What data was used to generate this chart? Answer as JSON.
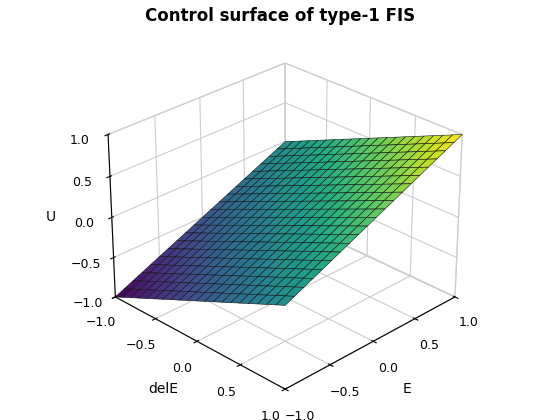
{
  "title": "Control surface of type-1 FIS",
  "xlabel": "E",
  "ylabel": "delE",
  "zlabel": "U",
  "xlim": [
    -1,
    1
  ],
  "ylim": [
    -1,
    1
  ],
  "zlim": [
    -1,
    1
  ],
  "x_ticks": [
    -1,
    -0.5,
    0,
    0.5,
    1
  ],
  "y_ticks": [
    -1,
    -0.5,
    0,
    0.5,
    1
  ],
  "z_ticks": [
    -1,
    -0.5,
    0,
    0.5,
    1
  ],
  "n_points": 21,
  "colormap": "viridis",
  "elev": 28,
  "azim": -135,
  "linewidth": 0.4,
  "edgecolor": "#111111",
  "figsize": [
    5.6,
    4.2
  ],
  "dpi": 100,
  "title_fontsize": 12,
  "label_fontsize": 10,
  "background_color": "#ffffff"
}
